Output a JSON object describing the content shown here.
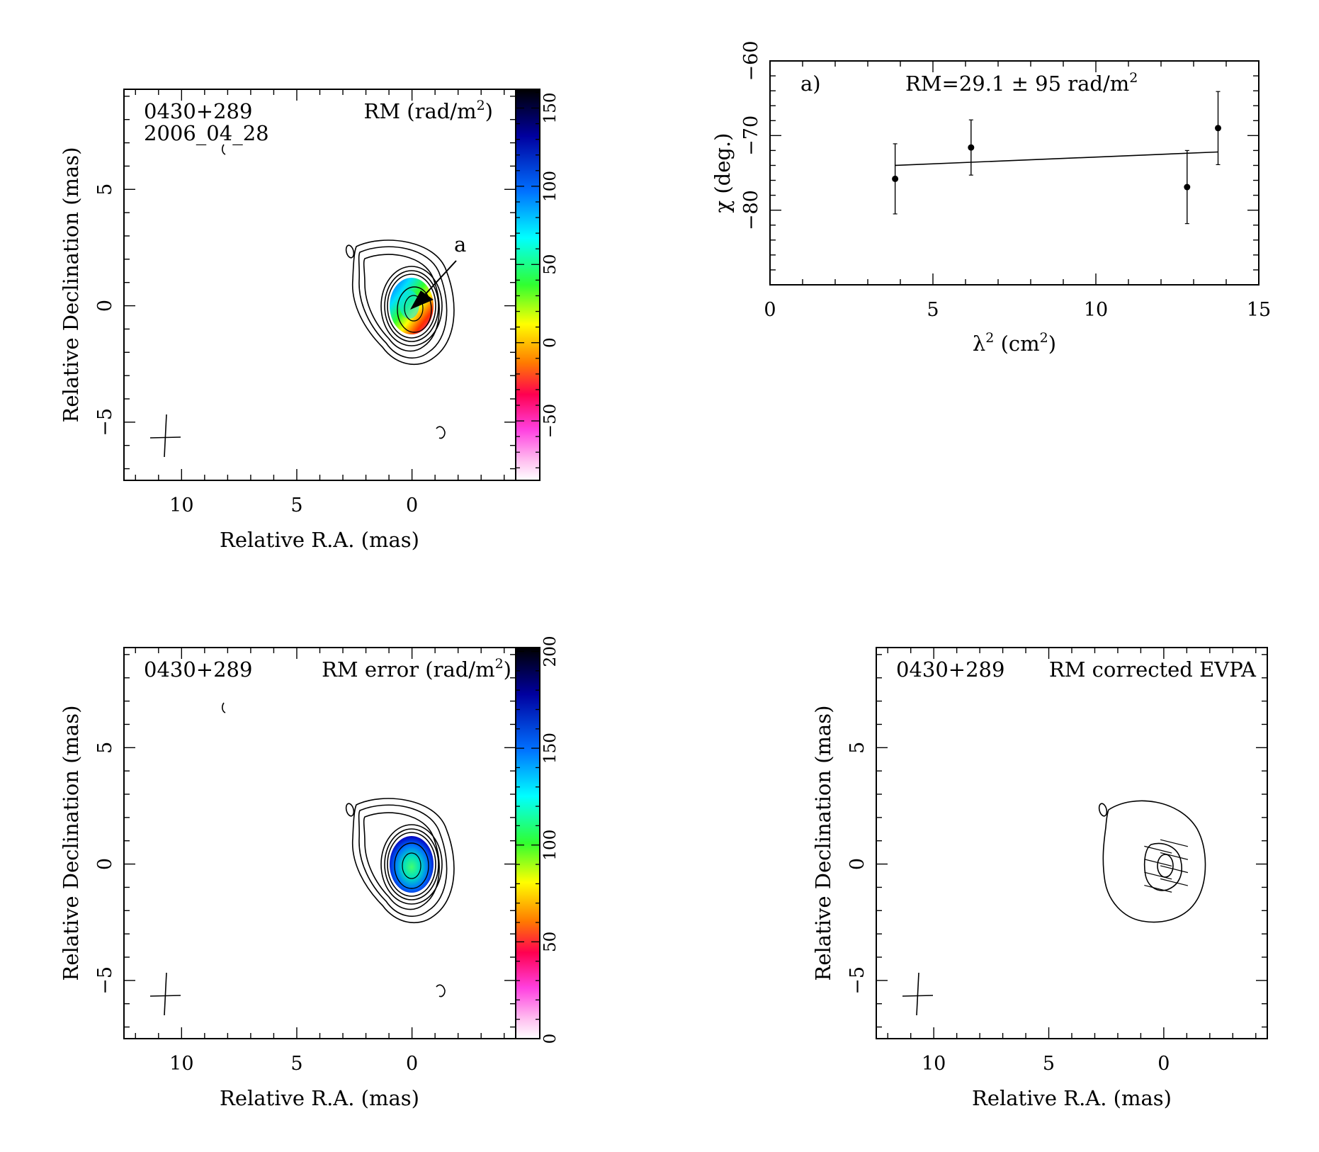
{
  "source": "0430+289",
  "epoch": "2006_04_28",
  "colors": {
    "ink": "#000000",
    "background": "#ffffff"
  },
  "chart_data": [
    {
      "type": "heatmap",
      "panel": "rm_map",
      "source_label": "0430+289",
      "epoch_label": "2006_04_28",
      "map_label": "RM (rad/m",
      "map_label_sup": "2",
      "map_label_tail": ")",
      "xlabel": "Relative R.A. (mas)",
      "ylabel": "Relative Declination (mas)",
      "xlim": [
        12.5,
        -4.5
      ],
      "ylim": [
        -7.5,
        9.3
      ],
      "x_ticks": [
        "10",
        "5",
        "0"
      ],
      "x_tick_values": [
        10,
        5,
        0
      ],
      "y_ticks": [
        "−5",
        "0",
        "5"
      ],
      "y_tick_values": [
        -5,
        0,
        5
      ],
      "colorbar": {
        "range": [
          -88,
          162
        ],
        "ticks": [
          "−50",
          "0",
          "50",
          "100",
          "150"
        ],
        "tick_values": [
          -50,
          0,
          50,
          100,
          150
        ],
        "scale": "white-pink-red-yellow-green-cyan-blue-black"
      },
      "region_label": "a",
      "region_value_rad_m2": 29.1,
      "beam": {
        "major_mas": 3.6,
        "minor_mas": 2.4,
        "pa_deg": -5
      }
    },
    {
      "type": "scatter",
      "panel": "rm_fit",
      "label": "a)",
      "annotation": "RM=29.1 ± 95 rad/m",
      "annotation_sup": "2",
      "xlabel": "λ",
      "xlabel_sup": "2",
      "xlabel_unit": " (cm",
      "xlabel_unit_sup": "2",
      "xlabel_unit_tail": ")",
      "ylabel": "χ (deg.)",
      "xlim": [
        0,
        15
      ],
      "ylim": [
        -90,
        -60
      ],
      "x_ticks": [
        "0",
        "5",
        "10",
        "15"
      ],
      "x_tick_values": [
        0,
        5,
        10,
        15
      ],
      "y_ticks": [
        "−80",
        "−70",
        "−60"
      ],
      "y_tick_values": [
        -80,
        -70,
        -60
      ],
      "points": [
        {
          "x": 3.84,
          "y": -75.8,
          "err": 4.7
        },
        {
          "x": 6.17,
          "y": -71.6,
          "err": 3.7
        },
        {
          "x": 12.8,
          "y": -76.9,
          "err": 4.9
        },
        {
          "x": 13.75,
          "y": -69.0,
          "err": 4.9
        }
      ],
      "fit": {
        "x": [
          3.84,
          13.75
        ],
        "y": [
          -74.0,
          -72.2
        ]
      }
    },
    {
      "type": "heatmap",
      "panel": "rm_error_map",
      "source_label": "0430+289",
      "map_label": "RM error (rad/m",
      "map_label_sup": "2",
      "map_label_tail": ")",
      "xlabel": "Relative R.A. (mas)",
      "ylabel": "Relative Declination (mas)",
      "xlim": [
        12.5,
        -4.5
      ],
      "ylim": [
        -7.5,
        9.3
      ],
      "x_ticks": [
        "10",
        "5",
        "0"
      ],
      "x_tick_values": [
        10,
        5,
        0
      ],
      "y_ticks": [
        "−5",
        "0",
        "5"
      ],
      "y_tick_values": [
        -5,
        0,
        5
      ],
      "colorbar": {
        "range": [
          0,
          202
        ],
        "ticks": [
          "0",
          "50",
          "100",
          "150",
          "200"
        ],
        "tick_values": [
          0,
          50,
          100,
          150,
          200
        ],
        "scale": "white-pink-red-yellow-green-cyan-blue-black"
      },
      "beam": {
        "major_mas": 3.6,
        "minor_mas": 2.4,
        "pa_deg": -5
      }
    },
    {
      "type": "heatmap",
      "panel": "evpa_map",
      "source_label": "0430+289",
      "map_label": "RM corrected EVPA",
      "xlabel": "Relative R.A. (mas)",
      "ylabel": "Relative Declination (mas)",
      "xlim": [
        12.5,
        -4.5
      ],
      "ylim": [
        -7.5,
        9.3
      ],
      "x_ticks": [
        "10",
        "5",
        "0"
      ],
      "x_tick_values": [
        10,
        5,
        0
      ],
      "y_ticks": [
        "−5",
        "0",
        "5"
      ],
      "y_tick_values": [
        -5,
        0,
        5
      ],
      "evpa_deg": -76,
      "beam": {
        "major_mas": 3.6,
        "minor_mas": 2.4,
        "pa_deg": -5
      }
    }
  ]
}
